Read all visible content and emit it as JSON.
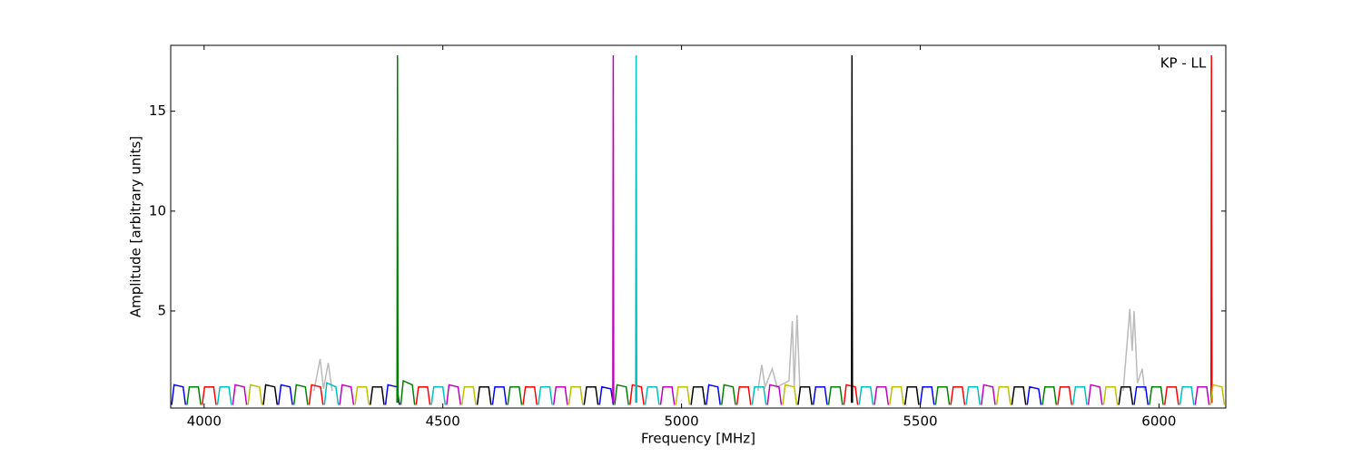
{
  "chart_data": {
    "type": "line",
    "annotation": "KP - LL",
    "xlabel": "Frequency [MHz]",
    "ylabel": "Amplitude [arbitrary units]",
    "xlim": [
      3930,
      6140
    ],
    "ylim": [
      0.14,
      18.3
    ],
    "xticks": [
      4000,
      4500,
      5000,
      5500,
      6000
    ],
    "yticks": [
      5,
      10,
      15
    ],
    "series": [
      {
        "color": "#bbbbbb",
        "x": [
          4230,
          4243,
          4250,
          4260,
          4268,
          null,
          5160,
          5168,
          5175,
          5190,
          5200,
          5225,
          5232,
          5236,
          5242,
          5248,
          null,
          5925,
          5935,
          5939,
          5944,
          5948,
          5955,
          5965,
          5970
        ],
        "values": [
          1.0,
          2.6,
          1.1,
          2.4,
          1.0,
          null,
          1.0,
          2.3,
          1.2,
          2.1,
          1.2,
          1.5,
          4.5,
          1.2,
          4.8,
          1.0,
          null,
          1.0,
          3.9,
          5.1,
          3.0,
          5.0,
          1.4,
          2.1,
          1.0
        ]
      },
      {
        "color": "#0000ff",
        "x": [
          3932,
          3937,
          3956,
          3961,
          null,
          4156,
          4161,
          4180,
          4185,
          null,
          4380,
          4385,
          4404,
          4409,
          null,
          4604,
          4609,
          4628,
          4633,
          null,
          4828,
          4833,
          4852,
          4857,
          null,
          5052,
          5057,
          5076,
          5081,
          null,
          5276,
          5281,
          5300,
          5305,
          null,
          5500,
          5505,
          5524,
          5529,
          null,
          5724,
          5729,
          5748,
          5753,
          null,
          5948,
          5953,
          5972,
          5977
        ],
        "values": [
          0.3,
          1.3,
          1.2,
          0.3,
          null,
          0.3,
          1.3,
          1.2,
          0.3,
          null,
          0.3,
          1.3,
          1.2,
          0.3,
          null,
          0.3,
          1.2,
          1.2,
          0.3,
          null,
          0.3,
          1.2,
          1.1,
          0.3,
          null,
          0.3,
          1.3,
          1.2,
          0.3,
          null,
          0.3,
          1.2,
          1.2,
          0.3,
          null,
          0.3,
          1.2,
          1.2,
          0.3,
          null,
          0.3,
          1.2,
          1.1,
          0.3,
          null,
          0.3,
          1.2,
          1.2,
          0.3
        ]
      },
      {
        "color": "#008000",
        "x": [
          3964,
          3969,
          3988,
          3993,
          null,
          4188,
          4193,
          4212,
          4217,
          null,
          4412,
          4417,
          4436,
          4441,
          null,
          4636,
          4641,
          4660,
          4665,
          null,
          4860,
          4865,
          4884,
          4889,
          null,
          5084,
          5089,
          5108,
          5113,
          null,
          5308,
          5313,
          5332,
          5337,
          null,
          5532,
          5537,
          5556,
          5561,
          null,
          5756,
          5761,
          5780,
          5785,
          null,
          5980,
          5985,
          6004,
          6009,
          null,
          4404,
          4405,
          4406
        ],
        "values": [
          0.3,
          1.2,
          1.2,
          0.3,
          null,
          0.3,
          1.3,
          1.2,
          0.3,
          null,
          0.3,
          1.5,
          1.3,
          0.3,
          null,
          0.3,
          1.2,
          1.2,
          0.3,
          null,
          0.3,
          1.3,
          1.2,
          0.3,
          null,
          0.3,
          1.3,
          1.2,
          0.3,
          null,
          0.3,
          1.2,
          1.2,
          0.3,
          null,
          0.3,
          1.2,
          1.2,
          0.3,
          null,
          0.3,
          1.2,
          1.2,
          0.3,
          null,
          0.3,
          1.2,
          1.2,
          0.3,
          null,
          0.4,
          17.8,
          0.4
        ]
      },
      {
        "color": "#ff0000",
        "x": [
          3996,
          4001,
          4020,
          4025,
          null,
          4220,
          4225,
          4244,
          4249,
          null,
          4444,
          4449,
          4468,
          4473,
          null,
          4668,
          4673,
          4692,
          4697,
          null,
          4892,
          4897,
          4916,
          4921,
          null,
          5116,
          5121,
          5140,
          5145,
          null,
          5340,
          5345,
          5364,
          5369,
          null,
          5564,
          5569,
          5588,
          5593,
          null,
          5788,
          5793,
          5812,
          5817,
          null,
          6012,
          6017,
          6036,
          6041,
          null,
          6109,
          6110,
          6111
        ],
        "values": [
          0.3,
          1.2,
          1.2,
          0.3,
          null,
          0.3,
          1.3,
          1.2,
          0.3,
          null,
          0.3,
          1.2,
          1.2,
          0.3,
          null,
          0.3,
          1.2,
          1.2,
          0.3,
          null,
          0.3,
          1.3,
          1.2,
          0.3,
          null,
          0.3,
          1.2,
          1.2,
          0.3,
          null,
          0.3,
          1.3,
          1.2,
          0.3,
          null,
          0.3,
          1.2,
          1.2,
          0.3,
          null,
          0.3,
          1.2,
          1.2,
          0.3,
          null,
          0.3,
          1.2,
          1.2,
          0.3,
          null,
          0.4,
          17.8,
          0.4
        ]
      },
      {
        "color": "#00bfbf",
        "x": [
          4028,
          4033,
          4052,
          4057,
          null,
          4252,
          4257,
          4276,
          4281,
          null,
          4476,
          4481,
          4500,
          4505,
          null,
          4700,
          4705,
          4724,
          4729,
          null,
          4924,
          4929,
          4948,
          4953,
          null,
          5148,
          5153,
          5172,
          5177,
          null,
          5372,
          5377,
          5396,
          5401,
          null,
          5596,
          5601,
          5620,
          5625,
          null,
          5820,
          5825,
          5844,
          5849,
          null,
          6044,
          6049,
          6068,
          6073,
          null,
          4904,
          4905,
          4906
        ],
        "values": [
          0.3,
          1.2,
          1.2,
          0.3,
          null,
          0.3,
          1.4,
          1.2,
          0.3,
          null,
          0.3,
          1.2,
          1.2,
          0.3,
          null,
          0.3,
          1.2,
          1.2,
          0.3,
          null,
          0.3,
          1.2,
          1.2,
          0.3,
          null,
          0.3,
          1.2,
          1.2,
          0.3,
          null,
          0.3,
          1.2,
          1.2,
          0.3,
          null,
          0.3,
          1.2,
          1.2,
          0.3,
          null,
          0.3,
          1.2,
          1.2,
          0.3,
          null,
          0.3,
          1.2,
          1.2,
          0.3,
          null,
          0.4,
          17.8,
          0.4
        ]
      },
      {
        "color": "#bf00bf",
        "x": [
          4060,
          4065,
          4084,
          4089,
          null,
          4284,
          4289,
          4308,
          4313,
          null,
          4508,
          4513,
          4532,
          4537,
          null,
          4732,
          4737,
          4756,
          4761,
          null,
          4956,
          4961,
          4980,
          4985,
          null,
          5180,
          5185,
          5204,
          5209,
          null,
          5404,
          5409,
          5428,
          5433,
          null,
          5628,
          5633,
          5652,
          5657,
          null,
          5852,
          5857,
          5876,
          5881,
          null,
          6076,
          6081,
          6100,
          6105,
          null,
          4856,
          4857,
          4858
        ],
        "values": [
          0.3,
          1.3,
          1.2,
          0.3,
          null,
          0.3,
          1.3,
          1.2,
          0.3,
          null,
          0.3,
          1.3,
          1.2,
          0.3,
          null,
          0.3,
          1.2,
          1.2,
          0.3,
          null,
          0.3,
          1.2,
          1.2,
          0.3,
          null,
          0.3,
          1.3,
          1.2,
          0.3,
          null,
          0.3,
          1.2,
          1.2,
          0.3,
          null,
          0.3,
          1.3,
          1.2,
          0.3,
          null,
          0.3,
          1.3,
          1.2,
          0.3,
          null,
          0.3,
          1.2,
          1.2,
          0.3,
          null,
          0.4,
          17.8,
          0.4
        ]
      },
      {
        "color": "#bfbf00",
        "x": [
          4092,
          4097,
          4116,
          4121,
          null,
          4316,
          4321,
          4340,
          4345,
          null,
          4540,
          4545,
          4564,
          4569,
          null,
          4764,
          4769,
          4788,
          4793,
          null,
          4988,
          4993,
          5012,
          5017,
          null,
          5212,
          5217,
          5236,
          5241,
          null,
          5436,
          5441,
          5460,
          5465,
          null,
          5660,
          5665,
          5684,
          5689,
          null,
          5884,
          5889,
          5908,
          5913,
          null,
          6108,
          6113,
          6132,
          6137
        ],
        "values": [
          0.3,
          1.3,
          1.2,
          0.3,
          null,
          0.3,
          1.2,
          1.2,
          0.3,
          null,
          0.3,
          1.2,
          1.2,
          0.3,
          null,
          0.3,
          1.2,
          1.2,
          0.3,
          null,
          0.3,
          1.2,
          1.2,
          0.3,
          null,
          0.3,
          1.3,
          1.2,
          0.3,
          null,
          0.3,
          1.2,
          1.2,
          0.3,
          null,
          0.3,
          1.2,
          1.2,
          0.3,
          null,
          0.3,
          1.2,
          1.2,
          0.3,
          null,
          0.3,
          1.3,
          1.2,
          0.3
        ]
      },
      {
        "color": "#000000",
        "x": [
          4124,
          4129,
          4148,
          4153,
          null,
          4348,
          4353,
          4372,
          4377,
          null,
          4572,
          4577,
          4596,
          4601,
          null,
          4796,
          4801,
          4820,
          4825,
          null,
          5020,
          5025,
          5044,
          5049,
          null,
          5244,
          5249,
          5268,
          5273,
          null,
          5468,
          5473,
          5492,
          5497,
          null,
          5692,
          5697,
          5716,
          5721,
          null,
          5916,
          5921,
          5940,
          5945,
          null,
          5356,
          5357,
          5358
        ],
        "values": [
          0.3,
          1.3,
          1.2,
          0.3,
          null,
          0.3,
          1.2,
          1.2,
          0.3,
          null,
          0.3,
          1.2,
          1.2,
          0.3,
          null,
          0.3,
          1.2,
          1.2,
          0.3,
          null,
          0.3,
          1.2,
          1.2,
          0.3,
          null,
          0.3,
          1.2,
          1.2,
          0.3,
          null,
          0.3,
          1.2,
          1.2,
          0.3,
          null,
          0.3,
          1.2,
          1.2,
          0.3,
          null,
          0.3,
          1.2,
          1.2,
          0.3,
          null,
          0.4,
          17.8,
          0.4
        ]
      }
    ]
  }
}
